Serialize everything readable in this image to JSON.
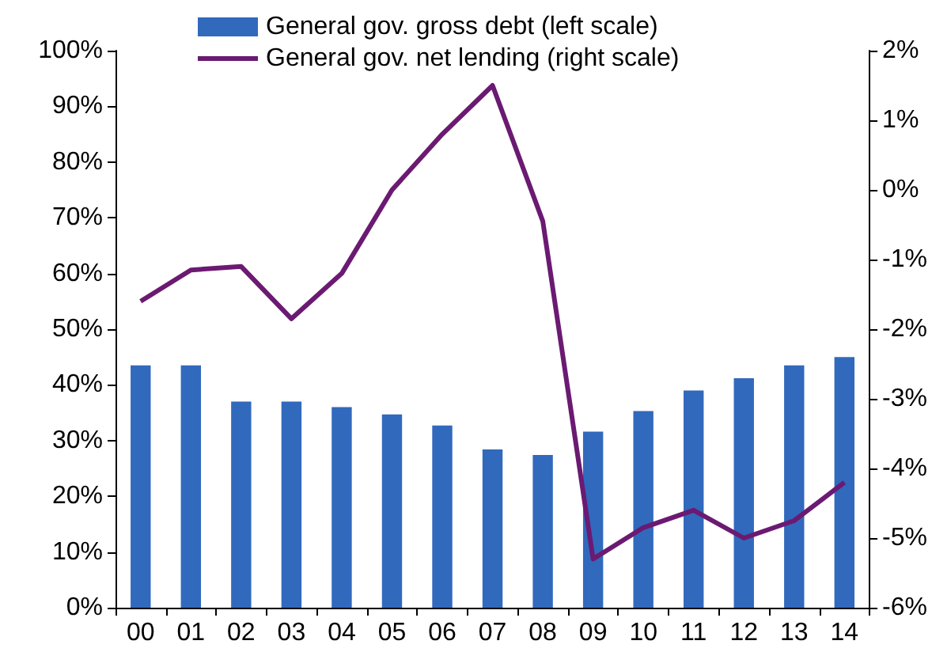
{
  "chart_data": {
    "type": "bar",
    "categories": [
      "00",
      "01",
      "02",
      "03",
      "04",
      "05",
      "06",
      "07",
      "08",
      "09",
      "10",
      "11",
      "12",
      "13",
      "14"
    ],
    "series": [
      {
        "name": "General gov. gross debt (left scale)",
        "color": "#3169bd",
        "values": [
          43.5,
          43.5,
          37,
          37,
          36,
          34.7,
          32.7,
          28.4,
          27.4,
          31.6,
          35.3,
          39,
          41.2,
          43.5,
          45
        ]
      },
      {
        "name": "General gov. net lending (right scale)",
        "type": "line",
        "axis": "y2",
        "color": "#6b1a72",
        "values": [
          -1.6,
          -1.15,
          -1.1,
          -1.85,
          -1.2,
          0,
          0.8,
          1.5,
          -0.45,
          -5.3,
          -4.85,
          -4.6,
          -5,
          -4.75,
          -4.2
        ]
      }
    ],
    "ylim": [
      0,
      100
    ],
    "yticks": [
      {
        "value": 0,
        "label": "0%"
      },
      {
        "value": 10,
        "label": "10%"
      },
      {
        "value": 20,
        "label": "20%"
      },
      {
        "value": 30,
        "label": "30%"
      },
      {
        "value": 40,
        "label": "40%"
      },
      {
        "value": 50,
        "label": "50%"
      },
      {
        "value": 60,
        "label": "60%"
      },
      {
        "value": 70,
        "label": "70%"
      },
      {
        "value": 80,
        "label": "80%"
      },
      {
        "value": 90,
        "label": "90%"
      },
      {
        "value": 100,
        "label": "100%"
      }
    ],
    "y2lim": [
      -6,
      2
    ],
    "y2ticks": [
      {
        "value": -6,
        "label": "-6%"
      },
      {
        "value": -5,
        "label": "-5%"
      },
      {
        "value": -4,
        "label": "-4%"
      },
      {
        "value": -3,
        "label": "-3%"
      },
      {
        "value": -2,
        "label": "-2%"
      },
      {
        "value": -1,
        "label": "-1%"
      },
      {
        "value": 0,
        "label": "0%"
      },
      {
        "value": 1,
        "label": "1%"
      },
      {
        "value": 2,
        "label": "2%"
      }
    ],
    "grid": false,
    "legend": "top",
    "marker": "none",
    "line_style": "solid"
  }
}
